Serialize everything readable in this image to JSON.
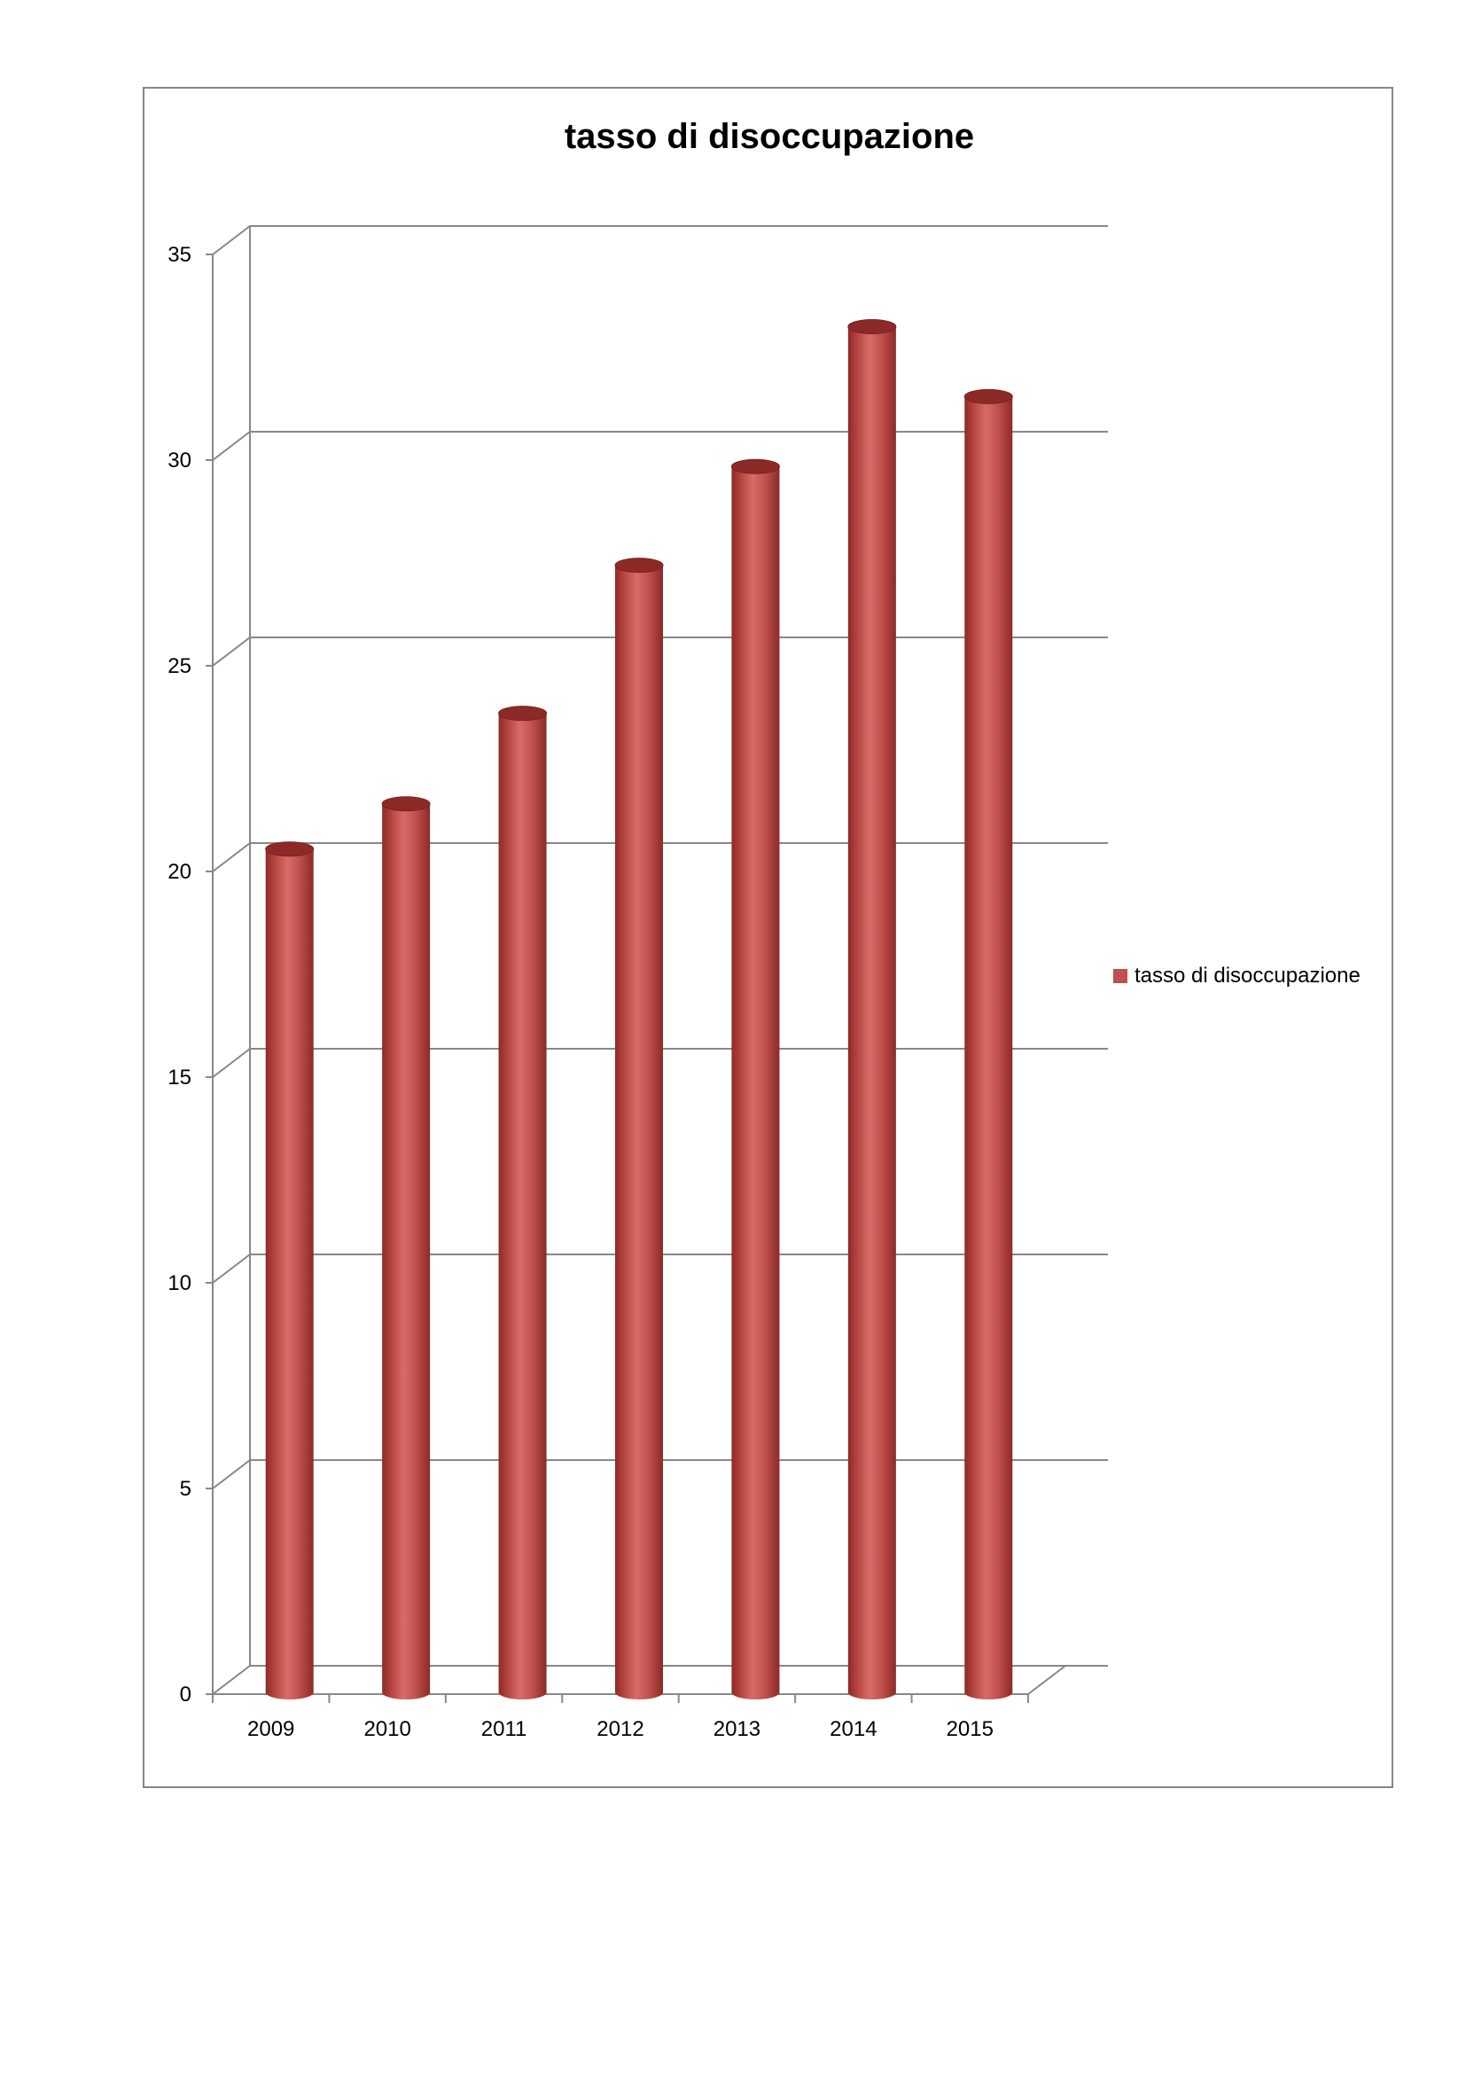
{
  "chart_data": {
    "type": "bar",
    "title": "tasso di disoccupazione",
    "categories": [
      "2009",
      "2010",
      "2011",
      "2012",
      "2013",
      "2014",
      "2015"
    ],
    "series": [
      {
        "name": "tasso di disoccupazione",
        "values": [
          20.5,
          21.6,
          23.8,
          27.4,
          29.8,
          33.2,
          31.5
        ],
        "color": "#c0504d"
      }
    ],
    "y_ticks": [
      "0",
      "5",
      "10",
      "15",
      "20",
      "25",
      "30",
      "35"
    ],
    "ylim": [
      0,
      35
    ],
    "grid": true,
    "legend_position": "right",
    "xlabel": "",
    "ylabel": ""
  },
  "colors": {
    "bar_fill": "#c0504d",
    "bar_dark": "#8c2a27",
    "bar_light": "#d96c68",
    "gridline": "#888888",
    "frame_border": "#868686"
  }
}
